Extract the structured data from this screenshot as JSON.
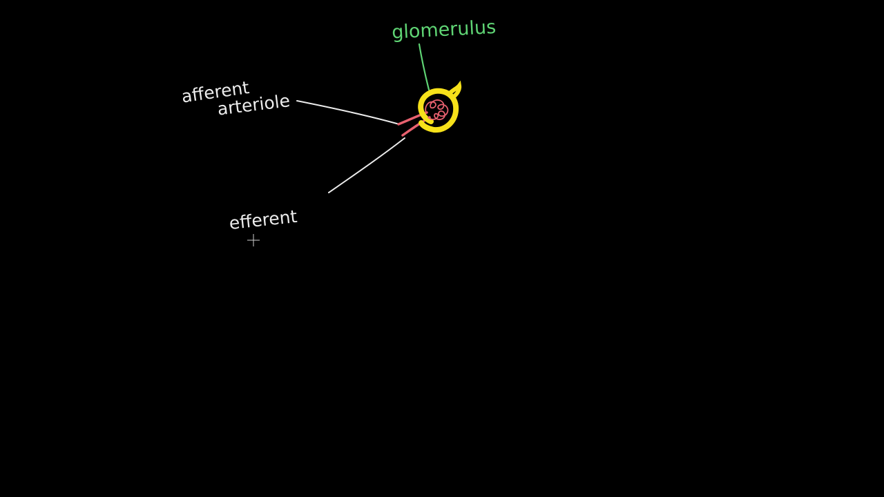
{
  "colors": {
    "background": "#000000",
    "label": "#ececec",
    "glomerulus_label": "#5fd474",
    "capsule": "#f6e11a",
    "vessel": "#e8616f"
  },
  "labels": {
    "glomerulus": "glomerulus",
    "afferent_line1": "afferent",
    "afferent_line2": "arteriole",
    "efferent": "efferent"
  },
  "cursor": {
    "icon": "crosshair-cursor-icon"
  }
}
